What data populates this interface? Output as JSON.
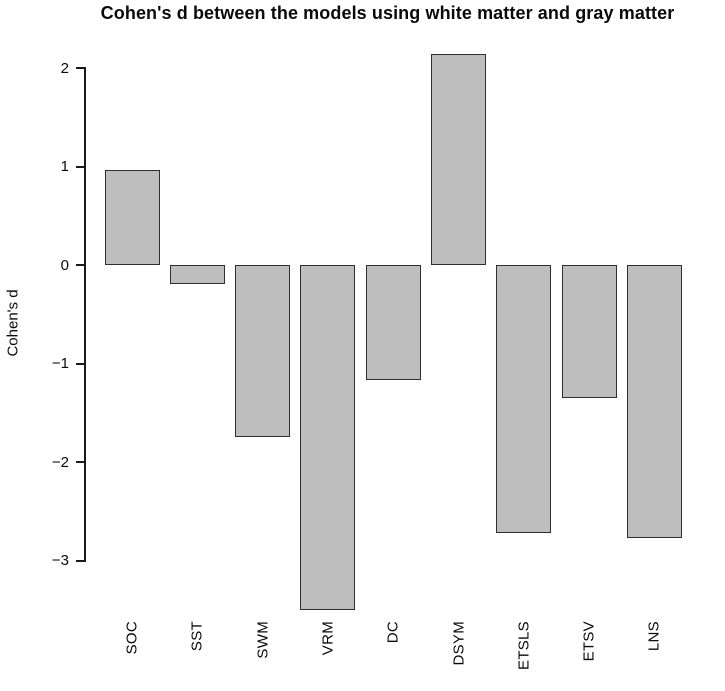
{
  "title": "Cohen's d between the models using white matter and gray matter",
  "chart_data": {
    "type": "bar",
    "title": "Cohen's d between the models using white matter and gray matter",
    "xlabel": "",
    "ylabel": "Cohen's d",
    "categories": [
      "SOC",
      "SST",
      "SWM",
      "VRM",
      "DC",
      "DSYM",
      "ETSLS",
      "ETSV",
      "LNS"
    ],
    "values": [
      0.96,
      -0.19,
      -1.75,
      -3.5,
      -1.17,
      2.14,
      -2.72,
      -1.35,
      -2.77
    ],
    "yticks": [
      2,
      1,
      0,
      -1,
      -2,
      -3
    ],
    "ylim": [
      -3.55,
      2.2
    ],
    "grid": false,
    "legend_position": "none",
    "bar_fill_color": "#bebebe",
    "bar_border_color": "#2f2f2f",
    "axis_color": "#1a1a1a"
  }
}
